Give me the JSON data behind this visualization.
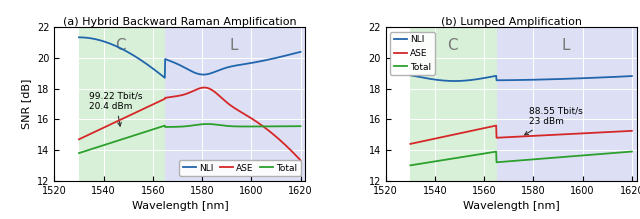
{
  "title_a": "(a) Hybrid Backward Raman Amplification",
  "title_b": "(b) Lumped Amplification",
  "xlabel": "Wavelength [nm]",
  "ylabel": "SNR [dB]",
  "xlim": [
    1520,
    1622
  ],
  "ylim": [
    12,
    22
  ],
  "xticks": [
    1520,
    1540,
    1560,
    1580,
    1600,
    1620
  ],
  "yticks": [
    12,
    14,
    16,
    18,
    20,
    22
  ],
  "c_band_start": 1530,
  "c_band_end": 1565,
  "l_band_start": 1565,
  "l_band_end": 1622,
  "c_band_color": "#d8f0d8",
  "l_band_color": "#dde0f5",
  "nli_color": "#2166ac",
  "ase_color": "#d62728",
  "total_color": "#2ca02c",
  "annotation_a_text": "99.22 Tbit/s\n20.4 dBm",
  "annotation_b_text": "88.55 Tbit/s\n23 dBm",
  "c_label": "C",
  "l_label": "L",
  "legend_labels": [
    "NLI",
    "ASE",
    "Total"
  ]
}
